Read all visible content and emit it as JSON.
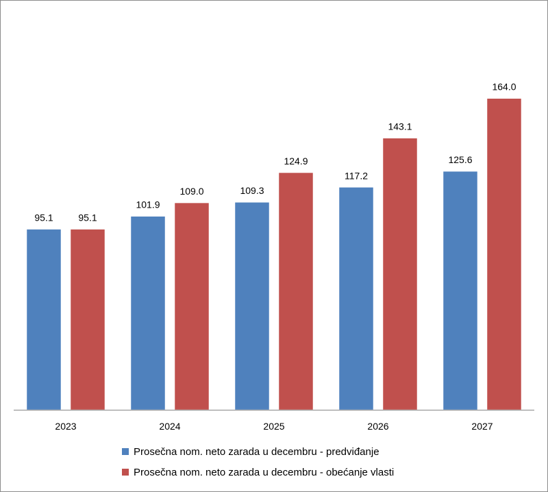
{
  "chart_data": {
    "type": "bar",
    "categories": [
      "2023",
      "2024",
      "2025",
      "2026",
      "2027"
    ],
    "series": [
      {
        "name": "Prosečna nom. neto zarada u decembru - predviđanje",
        "color": "#4f81bd",
        "values": [
          95.1,
          101.9,
          109.3,
          117.2,
          125.6
        ],
        "labels": [
          "95.1",
          "101.9",
          "109.3",
          "117.2",
          "125.6"
        ]
      },
      {
        "name": "Prosečna nom. neto zarada u decembru - obećanje vlasti",
        "color": "#c0504d",
        "values": [
          95.1,
          109.0,
          124.9,
          143.1,
          164.0
        ],
        "labels": [
          "95.1",
          "109.0",
          "124.9",
          "143.1",
          "164.0"
        ]
      }
    ],
    "ylim": [
      0,
      175
    ],
    "grid": false,
    "legend_position": "bottom"
  }
}
